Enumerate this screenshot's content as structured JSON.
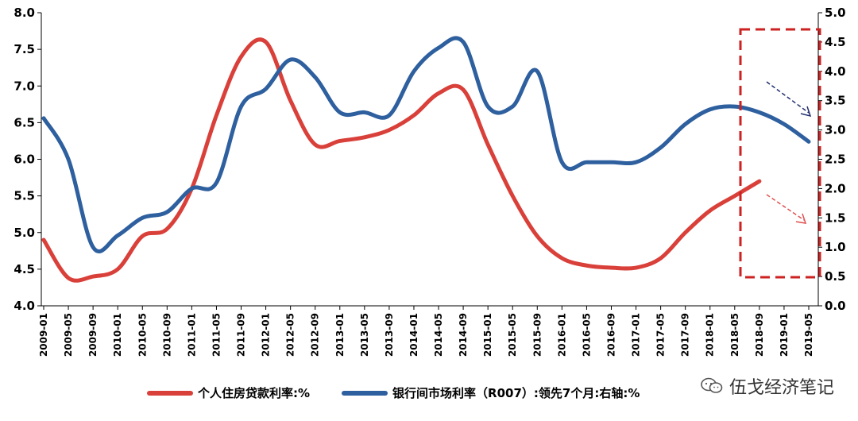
{
  "chart_data": {
    "type": "line",
    "x": [
      "2009-01",
      "2009-05",
      "2009-09",
      "2010-01",
      "2010-05",
      "2010-09",
      "2011-01",
      "2011-05",
      "2011-09",
      "2012-01",
      "2012-05",
      "2012-09",
      "2013-01",
      "2013-05",
      "2013-09",
      "2014-01",
      "2014-05",
      "2014-09",
      "2015-01",
      "2015-05",
      "2015-09",
      "2016-01",
      "2016-05",
      "2016-09",
      "2017-01",
      "2017-05",
      "2017-09",
      "2018-01",
      "2018-05",
      "2018-09",
      "2019-01",
      "2019-05"
    ],
    "xtick_labels": [
      "2009-01",
      "2009-05",
      "2009-09",
      "2010-01",
      "2010-05",
      "2010-09",
      "2011-01",
      "2011-05",
      "2011-09",
      "2012-01",
      "2012-05",
      "2012-09",
      "2013-01",
      "2013-05",
      "2013-09",
      "2014-01",
      "2014-05",
      "2014-09",
      "2015-01",
      "2015-05",
      "2015-09",
      "2016-01",
      "2016-05",
      "2016-09",
      "2017-01",
      "2017-05",
      "2017-09",
      "2018-01",
      "2018-05",
      "2018-09",
      "2019-01",
      "2019-05"
    ],
    "ylim_left": [
      4.0,
      8.0
    ],
    "ylim_right": [
      0.0,
      5.0
    ],
    "yticks_left": [
      "4.0",
      "4.5",
      "5.0",
      "5.5",
      "6.0",
      "6.5",
      "7.0",
      "7.5",
      "8.0"
    ],
    "yticks_right": [
      "0.0",
      "0.5",
      "1.0",
      "1.5",
      "2.0",
      "2.5",
      "3.0",
      "3.5",
      "4.0",
      "4.5",
      "5.0"
    ],
    "grid": false,
    "legend_position": "bottom",
    "series": [
      {
        "name": "个人住房贷款利率:%",
        "axis": "left",
        "color": "#d9403a",
        "values": [
          4.9,
          4.38,
          4.4,
          4.5,
          4.95,
          5.05,
          5.6,
          6.6,
          7.4,
          7.6,
          6.8,
          6.2,
          6.25,
          6.3,
          6.4,
          6.6,
          6.9,
          6.95,
          6.2,
          5.5,
          4.95,
          4.65,
          4.55,
          4.52,
          4.52,
          4.65,
          5.0,
          5.3,
          5.5,
          5.7,
          null,
          null
        ]
      },
      {
        "name": "银行间市场利率（R007）:领先7个月:右轴:%",
        "axis": "right",
        "color": "#2e5f9e",
        "values": [
          3.2,
          2.5,
          1.0,
          1.2,
          1.5,
          1.6,
          2.0,
          2.1,
          3.4,
          3.7,
          4.2,
          3.9,
          3.3,
          3.3,
          3.25,
          4.0,
          4.4,
          4.5,
          3.4,
          3.4,
          4.0,
          2.45,
          2.45,
          2.45,
          2.45,
          2.7,
          3.1,
          3.35,
          3.4,
          3.3,
          3.1,
          2.8
        ]
      }
    ],
    "annotations": [
      {
        "type": "dashed-box",
        "color": "#cc2222"
      },
      {
        "type": "arrow",
        "color": "#1f2d6e",
        "direction": "down-right"
      },
      {
        "type": "arrow",
        "color": "#e05050",
        "direction": "down-right"
      }
    ]
  },
  "legend": {
    "items": [
      {
        "label": "个人住房贷款利率:%",
        "color": "#d9403a"
      },
      {
        "label": "银行间市场利率（R007）:领先7个月:右轴:%",
        "color": "#2e5f9e"
      }
    ]
  },
  "watermark": {
    "text": "伍戈经济笔记",
    "icon": "wechat-icon"
  }
}
